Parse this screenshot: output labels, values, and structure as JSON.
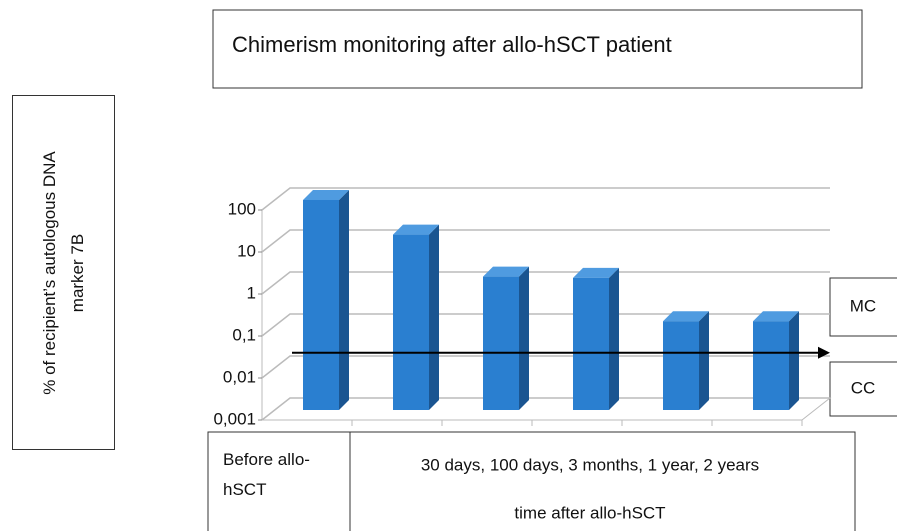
{
  "chart_data": {
    "type": "bar3d",
    "title": "Chimerism monitoring after allo-hSCT patient",
    "y_label": "% of recipient’s autologous DNA marker 7B",
    "categories": [
      "Before allo-hSCT",
      null,
      null,
      null,
      null,
      null
    ],
    "x_group_label": "30 days, 100 days, 3 months, 1 year, 2 years",
    "x_label": "time after allo-hSCT",
    "values": [
      100,
      15,
      1.5,
      1.4,
      0.13,
      0.13
    ],
    "color": "#2a7fd0",
    "log_scale": true,
    "ylim": [
      0.001,
      100
    ],
    "yticks": [
      {
        "value": 0.001,
        "label": "0,001"
      },
      {
        "value": 0.01,
        "label": "0,01"
      },
      {
        "value": 0.1,
        "label": "0,1"
      },
      1,
      10,
      100
    ],
    "grid": true,
    "threshold_line": 0.04,
    "annotations": [
      "MC",
      "CC"
    ]
  }
}
